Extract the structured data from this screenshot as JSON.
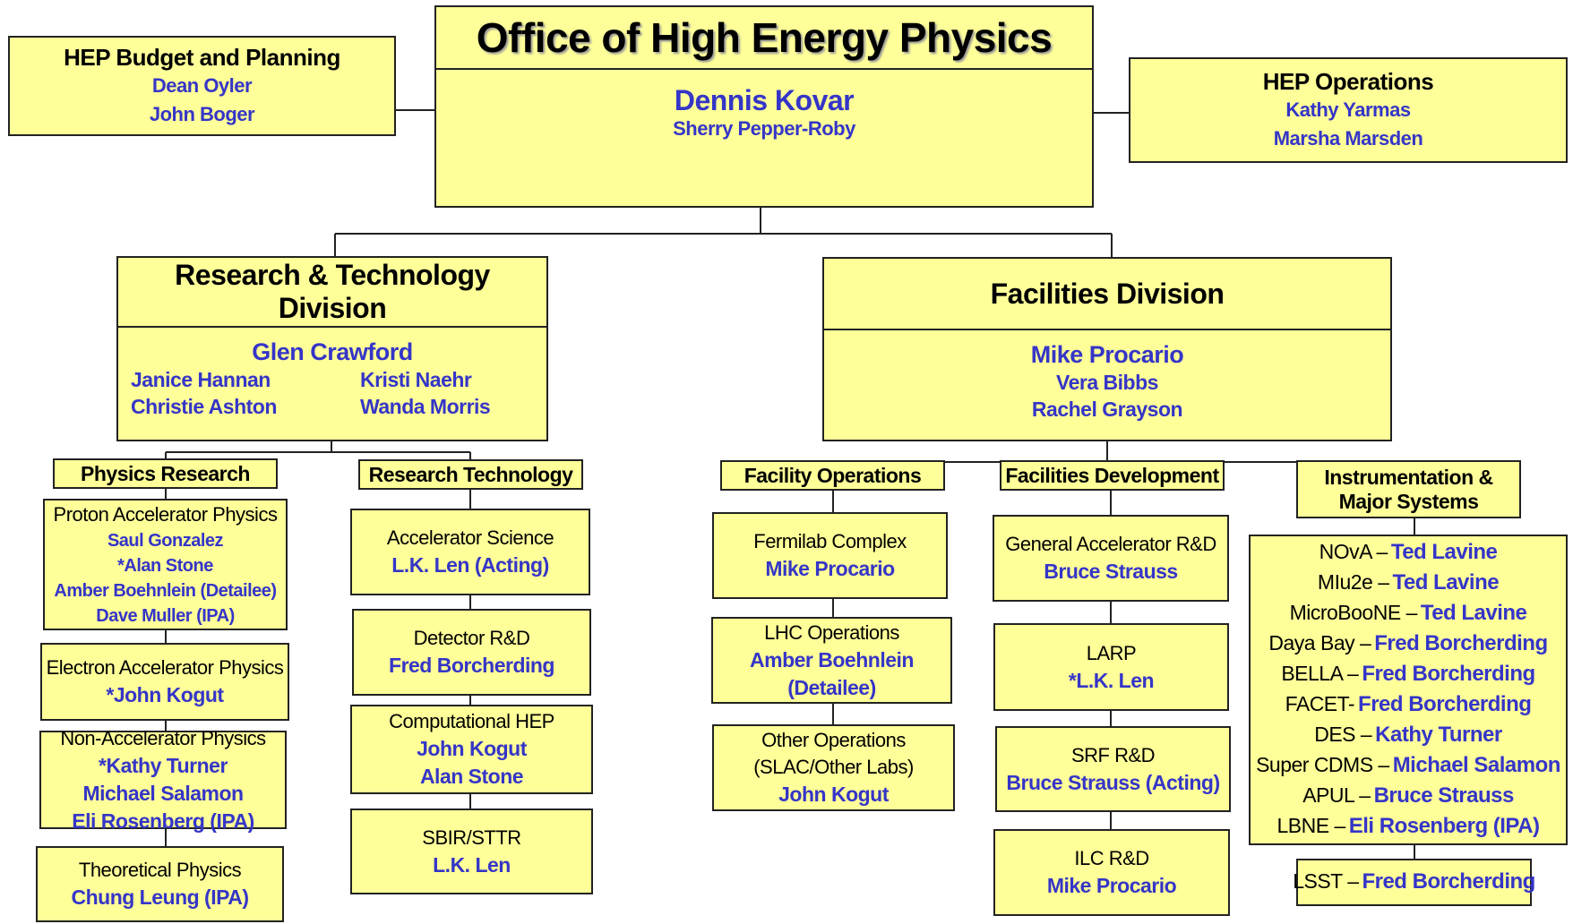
{
  "office": {
    "title": "Office of High Energy Physics",
    "head": "Dennis Kovar",
    "deputy": "Sherry Pepper-Roby"
  },
  "budget": {
    "title": "HEP Budget and Planning",
    "people": [
      "Dean Oyler",
      "John Boger"
    ]
  },
  "operations": {
    "title": "HEP Operations",
    "people": [
      "Kathy Yarmas",
      "Marsha Marsden"
    ]
  },
  "divisions": [
    {
      "title": "Research & Technology Division",
      "head": "Glen Crawford",
      "staff": [
        "Janice Hannan",
        "Kristi Naehr",
        "Christie Ashton",
        "Wanda Morris"
      ],
      "groups": [
        {
          "title": "Physics Research",
          "units": [
            {
              "title": "Proton Accelerator Physics",
              "people": [
                "Saul Gonzalez",
                "*Alan Stone",
                "Amber Boehnlein (Detailee)",
                "Dave Muller (IPA)"
              ]
            },
            {
              "title": "Electron Accelerator Physics",
              "people": [
                "*John Kogut"
              ]
            },
            {
              "title": "Non-Accelerator Physics",
              "people": [
                "*Kathy Turner",
                "Michael Salamon",
                "Eli Rosenberg (IPA)"
              ]
            },
            {
              "title": "Theoretical Physics",
              "people": [
                "Chung Leung (IPA)"
              ]
            }
          ]
        },
        {
          "title": "Research Technology",
          "units": [
            {
              "title": "Accelerator Science",
              "people": [
                "L.K. Len (Acting)"
              ]
            },
            {
              "title": "Detector R&D",
              "people": [
                "Fred Borcherding"
              ]
            },
            {
              "title": "Computational HEP",
              "people": [
                "John Kogut",
                "Alan Stone"
              ]
            },
            {
              "title": "SBIR/STTR",
              "people": [
                "L.K. Len"
              ]
            }
          ]
        }
      ]
    },
    {
      "title": "Facilities Division",
      "head": "Mike Procario",
      "staff": [
        "Vera Bibbs",
        "Rachel Grayson"
      ],
      "groups": [
        {
          "title": "Facility Operations",
          "units": [
            {
              "title": "Fermilab Complex",
              "people": [
                "Mike Procario"
              ]
            },
            {
              "title": "LHC Operations",
              "people": [
                "Amber Boehnlein (Detailee)"
              ]
            },
            {
              "title": "Other Operations (SLAC/Other Labs)",
              "people": [
                "John Kogut"
              ]
            }
          ]
        },
        {
          "title": "Facilities Development",
          "units": [
            {
              "title": "General Accelerator R&D",
              "people": [
                "Bruce Strauss"
              ]
            },
            {
              "title": "LARP",
              "people": [
                "*L.K. Len"
              ]
            },
            {
              "title": "SRF R&D",
              "people": [
                "Bruce Strauss (Acting)"
              ]
            },
            {
              "title": "ILC R&D",
              "people": [
                "Mike Procario"
              ]
            }
          ]
        },
        {
          "title": "Instrumentation & Major Systems",
          "units": [
            {
              "systems": [
                {
                  "name": "NOvA –",
                  "lead": "Ted Lavine"
                },
                {
                  "name": "MIu2e –",
                  "lead": "Ted Lavine"
                },
                {
                  "name": "MicroBooNE –",
                  "lead": "Ted Lavine"
                },
                {
                  "name": "Daya Bay –",
                  "lead": "Fred Borcherding"
                },
                {
                  "name": "BELLA –",
                  "lead": "Fred Borcherding"
                },
                {
                  "name": "FACET-",
                  "lead": "Fred Borcherding"
                },
                {
                  "name": "DES –",
                  "lead": "Kathy Turner"
                },
                {
                  "name": "Super CDMS –",
                  "lead": "Michael Salamon"
                },
                {
                  "name": "APUL –",
                  "lead": "Bruce Strauss"
                },
                {
                  "name": "LBNE –",
                  "lead": "Eli Rosenberg (IPA)"
                }
              ]
            },
            {
              "systems": [
                {
                  "name": "LSST –",
                  "lead": "Fred Borcherding"
                }
              ]
            }
          ]
        }
      ]
    }
  ]
}
